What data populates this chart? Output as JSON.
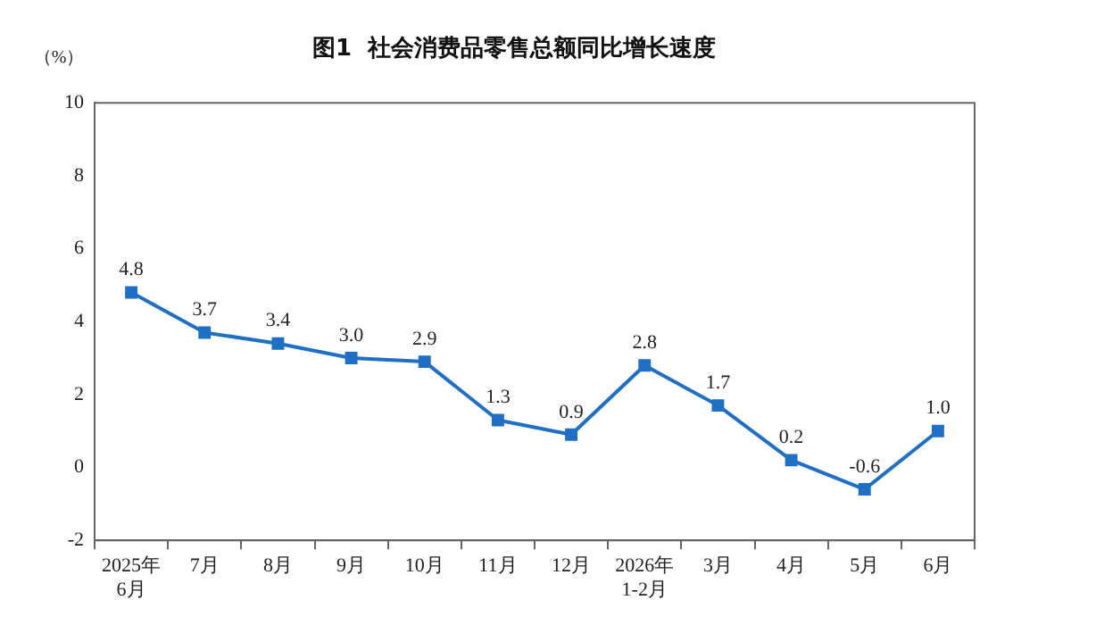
{
  "chart_data": {
    "type": "line",
    "title": "图1  社会消费品零售总额同比增长速度",
    "ylabel": "（%）",
    "categories": [
      "2025年\n6月",
      "7月",
      "8月",
      "9月",
      "10月",
      "11月",
      "12月",
      "2026年\n1-2月",
      "3月",
      "4月",
      "5月",
      "6月"
    ],
    "series": [
      {
        "color": "#1f6fc5",
        "values": [
          4.8,
          3.7,
          3.4,
          3.0,
          2.9,
          1.3,
          0.9,
          2.8,
          1.7,
          0.2,
          -0.6,
          1.0
        ]
      }
    ],
    "value_labels": [
      "4.8",
      "3.7",
      "3.4",
      "3.0",
      "2.9",
      "1.3",
      "0.9",
      "2.8",
      "1.7",
      "0.2",
      "-0.6",
      "1.0"
    ],
    "ylim": [
      -2,
      10
    ],
    "yticks": [
      -2,
      0,
      2,
      4,
      6,
      8,
      10
    ],
    "grid": false,
    "legend": false,
    "marker": "square",
    "line_style": "solid"
  }
}
